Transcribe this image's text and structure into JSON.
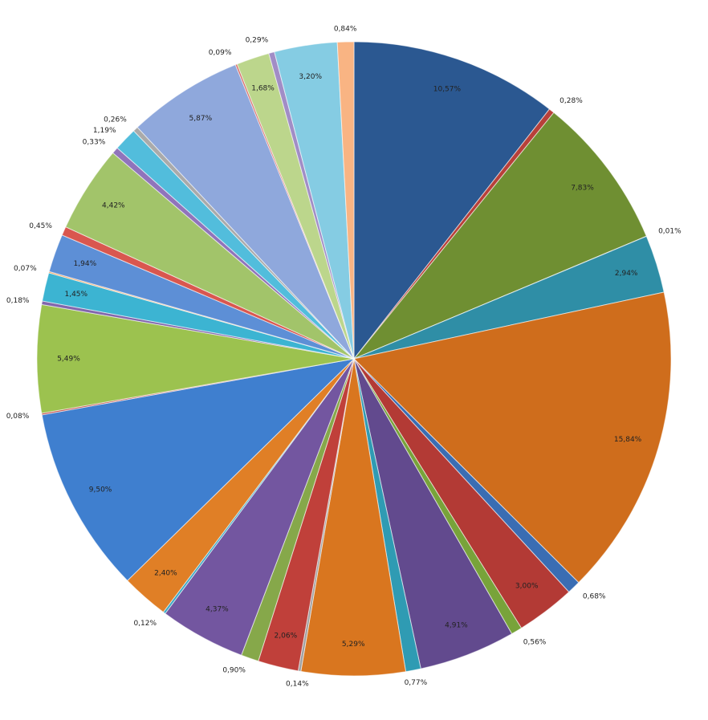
{
  "chart_data": {
    "type": "pie",
    "values": [
      10.57,
      0.28,
      7.83,
      0.01,
      2.94,
      15.84,
      0.68,
      3.0,
      0.56,
      4.91,
      0.77,
      5.29,
      0.14,
      2.06,
      0.9,
      4.37,
      0.12,
      2.4,
      9.5,
      0.08,
      5.49,
      0.18,
      1.45,
      0.07,
      1.94,
      0.45,
      4.42,
      0.33,
      1.19,
      0.26,
      5.87,
      0.09,
      1.68,
      0.29,
      3.2,
      0.84
    ],
    "value_labels": [
      "10,57%",
      "0,28%",
      "7,83%",
      "0,01%",
      "2,94%",
      "15,84%",
      "0,68%",
      "3,00%",
      "0,56%",
      "4,91%",
      "0,77%",
      "5,29%",
      "0,14%",
      "2,06%",
      "0,90%",
      "4,37%",
      "0,12%",
      "2,40%",
      "9,50%",
      "0,08%",
      "5,49%",
      "0,18%",
      "1,45%",
      "0,07%",
      "1,94%",
      "0,45%",
      "4,42%",
      "0,33%",
      "1,19%",
      "0,26%",
      "5,87%",
      "0,09%",
      "1,68%",
      "0,29%",
      "3,20%",
      "0,84%"
    ],
    "colors": [
      "#2b5891",
      "#b8403a",
      "#6f8f32",
      "#5f4b8b",
      "#2f8ea6",
      "#cf6d1c",
      "#3a6db3",
      "#b33a35",
      "#78a33a",
      "#624a8e",
      "#2f9bb3",
      "#d9761f",
      "#a0a0a0",
      "#c0403a",
      "#86a84a",
      "#7356a0",
      "#3aa8c4",
      "#e07f26",
      "#3f7fcf",
      "#c24a45",
      "#9cc24f",
      "#8266ac",
      "#3cb4d2",
      "#f29b4f",
      "#5d8fd6",
      "#d9574f",
      "#a2c46a",
      "#9074bb",
      "#52bddc",
      "#aaaaaa",
      "#8fa8dc",
      "#d66a66",
      "#bcd68c",
      "#a18dc6",
      "#85cce3",
      "#f9b483"
    ]
  }
}
